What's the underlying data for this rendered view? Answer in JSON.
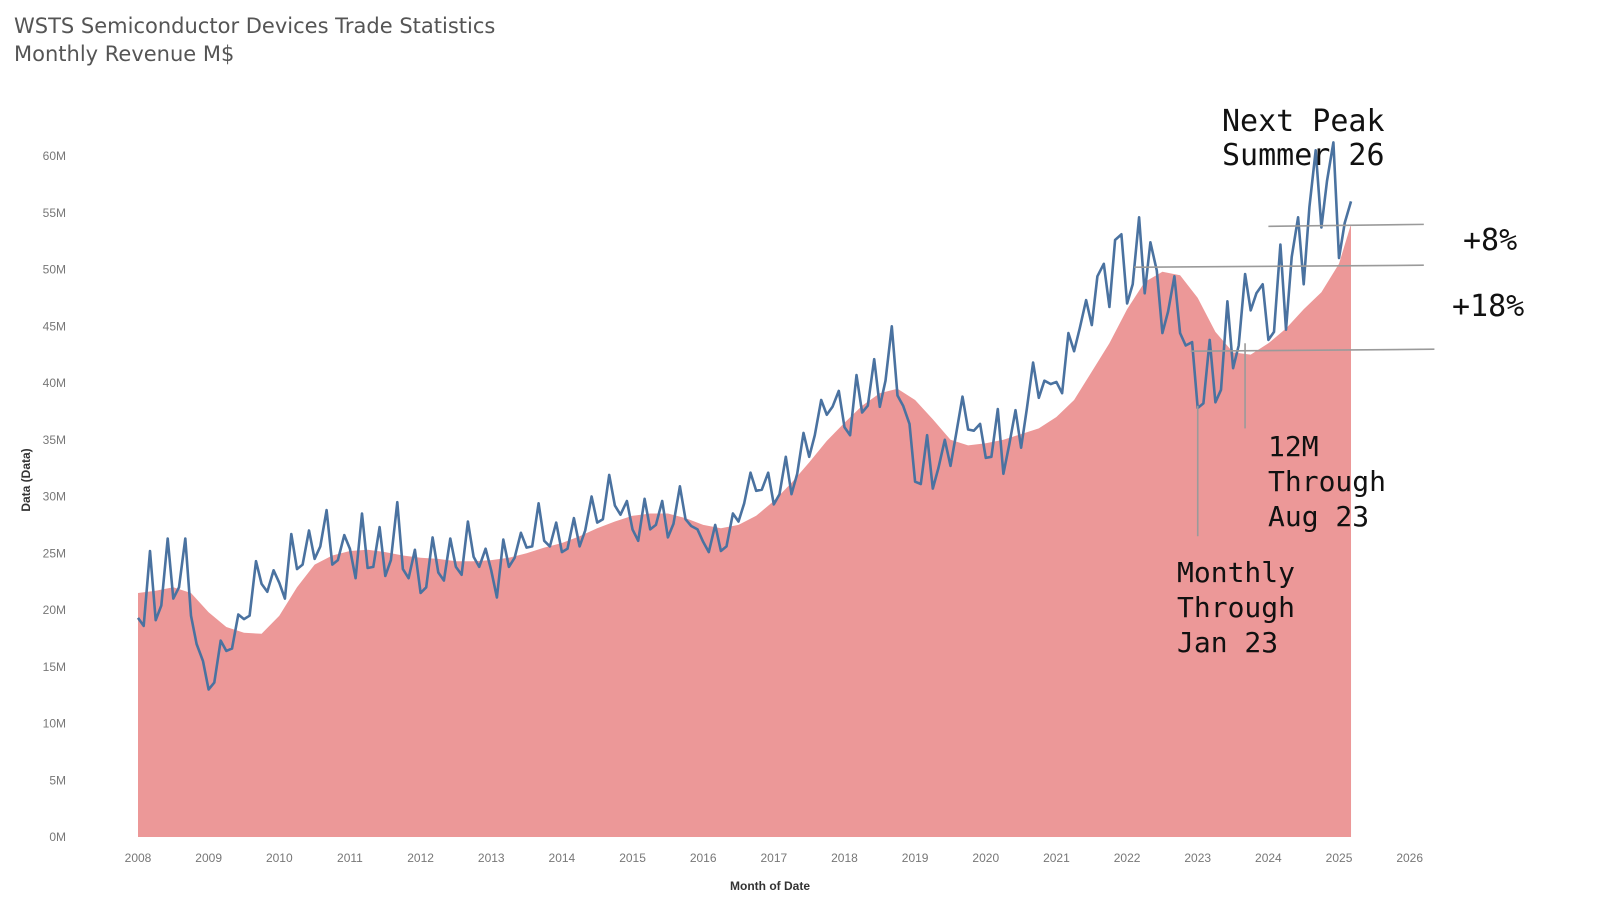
{
  "title_line1": "WSTS Semiconductor Devices Trade Statistics",
  "title_line2": "Monthly Revenue M$",
  "colors": {
    "monthly_line": "#4a72a0",
    "avg_area": "#ec9898",
    "annotation_line": "#9a9a9a"
  },
  "chart_data": {
    "type": "area",
    "xlabel": "Month of Date",
    "ylabel": "Data (Data)",
    "xlim": [
      2008,
      2026.5
    ],
    "ylim": [
      0,
      60
    ],
    "x_ticks": [
      "2008",
      "2009",
      "2010",
      "2011",
      "2012",
      "2013",
      "2014",
      "2015",
      "2016",
      "2017",
      "2018",
      "2019",
      "2020",
      "2021",
      "2022",
      "2023",
      "2024",
      "2025",
      "2026"
    ],
    "y_ticks": [
      "0M",
      "5M",
      "10M",
      "15M",
      "20M",
      "25M",
      "30M",
      "35M",
      "40M",
      "45M",
      "50M",
      "55M",
      "60M"
    ],
    "y_tick_values": [
      0,
      5,
      10,
      15,
      20,
      25,
      30,
      35,
      40,
      45,
      50,
      55,
      60
    ],
    "series": [
      {
        "name": "Monthly",
        "style": "line",
        "x": [
          2008.0,
          2008.08,
          2008.17,
          2008.25,
          2008.33,
          2008.42,
          2008.5,
          2008.58,
          2008.67,
          2008.75,
          2008.83,
          2008.92,
          2009.0,
          2009.08,
          2009.17,
          2009.25,
          2009.33,
          2009.42,
          2009.5,
          2009.58,
          2009.67,
          2009.75,
          2009.83,
          2009.92,
          2010.0,
          2010.08,
          2010.17,
          2010.25,
          2010.33,
          2010.42,
          2010.5,
          2010.58,
          2010.67,
          2010.75,
          2010.83,
          2010.92,
          2011.0,
          2011.08,
          2011.17,
          2011.25,
          2011.33,
          2011.42,
          2011.5,
          2011.58,
          2011.67,
          2011.75,
          2011.83,
          2011.92,
          2012.0,
          2012.08,
          2012.17,
          2012.25,
          2012.33,
          2012.42,
          2012.5,
          2012.58,
          2012.67,
          2012.75,
          2012.83,
          2012.92,
          2013.0,
          2013.08,
          2013.17,
          2013.25,
          2013.33,
          2013.42,
          2013.5,
          2013.58,
          2013.67,
          2013.75,
          2013.83,
          2013.92,
          2014.0,
          2014.08,
          2014.17,
          2014.25,
          2014.33,
          2014.42,
          2014.5,
          2014.58,
          2014.67,
          2014.75,
          2014.83,
          2014.92,
          2015.0,
          2015.08,
          2015.17,
          2015.25,
          2015.33,
          2015.42,
          2015.5,
          2015.58,
          2015.67,
          2015.75,
          2015.83,
          2015.92,
          2016.0,
          2016.08,
          2016.17,
          2016.25,
          2016.33,
          2016.42,
          2016.5,
          2016.58,
          2016.67,
          2016.75,
          2016.83,
          2016.92,
          2017.0,
          2017.08,
          2017.17,
          2017.25,
          2017.33,
          2017.42,
          2017.5,
          2017.58,
          2017.67,
          2017.75,
          2017.83,
          2017.92,
          2018.0,
          2018.08,
          2018.17,
          2018.25,
          2018.33,
          2018.42,
          2018.5,
          2018.58,
          2018.67,
          2018.75,
          2018.83,
          2018.92,
          2019.0,
          2019.08,
          2019.17,
          2019.25,
          2019.33,
          2019.42,
          2019.5,
          2019.58,
          2019.67,
          2019.75,
          2019.83,
          2019.92,
          2020.0,
          2020.08,
          2020.17,
          2020.25,
          2020.33,
          2020.42,
          2020.5,
          2020.58,
          2020.67,
          2020.75,
          2020.83,
          2020.92,
          2021.0,
          2021.08,
          2021.17,
          2021.25,
          2021.33,
          2021.42,
          2021.5,
          2021.58,
          2021.67,
          2021.75,
          2021.83,
          2021.92,
          2022.0,
          2022.08,
          2022.17,
          2022.25,
          2022.33,
          2022.42,
          2022.5,
          2022.58,
          2022.67,
          2022.75,
          2022.83,
          2022.92,
          2023.0,
          2023.08,
          2023.17,
          2023.25,
          2023.33,
          2023.42,
          2023.5,
          2023.58,
          2023.67,
          2023.75,
          2023.83,
          2023.92,
          2024.0,
          2024.08,
          2024.17,
          2024.25,
          2024.33,
          2024.42,
          2024.5,
          2024.58,
          2024.67,
          2024.75,
          2024.83,
          2024.92,
          2025.0,
          2025.08,
          2025.17
        ],
        "values": [
          19.3,
          18.6,
          25.2,
          19.1,
          20.4,
          26.3,
          21.0,
          22.0,
          26.3,
          19.5,
          17.0,
          15.5,
          13.0,
          13.6,
          17.3,
          16.4,
          16.6,
          19.6,
          19.2,
          19.5,
          24.3,
          22.3,
          21.6,
          23.5,
          22.4,
          21.0,
          26.7,
          23.6,
          24.0,
          27.0,
          24.5,
          25.6,
          28.8,
          24.0,
          24.4,
          26.6,
          25.4,
          22.8,
          28.5,
          23.7,
          23.8,
          27.3,
          23.0,
          24.4,
          29.5,
          23.6,
          22.8,
          25.3,
          21.5,
          22.0,
          26.4,
          23.3,
          22.6,
          26.3,
          23.8,
          23.1,
          27.8,
          24.7,
          23.8,
          25.4,
          23.5,
          21.1,
          26.2,
          23.8,
          24.6,
          26.8,
          25.5,
          25.6,
          29.4,
          26.1,
          25.6,
          27.7,
          25.1,
          25.4,
          28.1,
          25.6,
          27.0,
          30.0,
          27.7,
          28.0,
          31.9,
          29.2,
          28.4,
          29.6,
          27.1,
          26.1,
          29.8,
          27.1,
          27.5,
          29.6,
          26.4,
          27.6,
          30.9,
          28.0,
          27.4,
          27.1,
          26.0,
          25.1,
          27.5,
          25.2,
          25.6,
          28.5,
          27.8,
          29.4,
          32.1,
          30.5,
          30.6,
          32.1,
          29.3,
          30.2,
          33.5,
          30.2,
          32.0,
          35.6,
          33.5,
          35.4,
          38.5,
          37.2,
          37.9,
          39.3,
          36.1,
          35.4,
          40.7,
          37.4,
          38.0,
          42.1,
          37.9,
          40.2,
          45.0,
          38.9,
          38.0,
          36.4,
          31.3,
          31.1,
          35.4,
          30.7,
          32.5,
          35.0,
          32.7,
          35.5,
          38.8,
          35.9,
          35.8,
          36.4,
          33.4,
          33.5,
          37.7,
          32.0,
          34.5,
          37.6,
          34.3,
          37.7,
          41.8,
          38.7,
          40.2,
          39.9,
          40.1,
          39.1,
          44.4,
          42.8,
          44.8,
          47.3,
          45.1,
          49.4,
          50.5,
          46.7,
          52.6,
          53.1,
          47.0,
          48.7,
          54.6,
          47.9,
          52.4,
          49.9,
          44.4,
          46.3,
          49.4,
          44.4,
          43.3,
          43.6,
          37.8,
          38.2,
          43.8,
          38.3,
          39.4,
          47.2,
          41.3,
          43.3,
          49.6,
          46.4,
          47.9,
          48.7,
          43.8,
          44.5,
          52.2,
          44.7,
          51.1,
          54.6,
          48.7,
          55.5,
          60.5,
          53.7,
          57.8,
          61.2,
          51.0,
          54.1,
          56.0
        ]
      },
      {
        "name": "12M",
        "style": "area",
        "x": [
          2008.0,
          2008.25,
          2008.5,
          2008.75,
          2009.0,
          2009.25,
          2009.5,
          2009.75,
          2010.0,
          2010.25,
          2010.5,
          2010.75,
          2011.0,
          2011.25,
          2011.5,
          2011.75,
          2012.0,
          2012.25,
          2012.5,
          2012.75,
          2013.0,
          2013.25,
          2013.5,
          2013.75,
          2014.0,
          2014.25,
          2014.5,
          2014.75,
          2015.0,
          2015.25,
          2015.5,
          2015.75,
          2016.0,
          2016.25,
          2016.5,
          2016.75,
          2017.0,
          2017.25,
          2017.5,
          2017.75,
          2018.0,
          2018.25,
          2018.5,
          2018.75,
          2019.0,
          2019.25,
          2019.5,
          2019.75,
          2020.0,
          2020.25,
          2020.5,
          2020.75,
          2021.0,
          2021.25,
          2021.5,
          2021.75,
          2022.0,
          2022.25,
          2022.5,
          2022.75,
          2023.0,
          2023.25,
          2023.5,
          2023.75,
          2024.0,
          2024.25,
          2024.5,
          2024.75,
          2025.0,
          2025.17
        ],
        "values": [
          21.5,
          21.7,
          22.0,
          21.5,
          19.8,
          18.5,
          18.0,
          17.9,
          19.5,
          22.0,
          24.0,
          24.8,
          25.2,
          25.3,
          25.1,
          24.8,
          24.6,
          24.5,
          24.3,
          24.3,
          24.4,
          24.6,
          25.0,
          25.5,
          25.9,
          26.5,
          27.2,
          27.8,
          28.3,
          28.5,
          28.5,
          28.1,
          27.5,
          27.2,
          27.5,
          28.3,
          29.6,
          31.2,
          33.0,
          34.9,
          36.5,
          38.0,
          39.1,
          39.5,
          38.5,
          36.8,
          35.0,
          34.5,
          34.7,
          35.0,
          35.5,
          36.0,
          37.0,
          38.5,
          41.0,
          43.5,
          46.5,
          48.9,
          49.8,
          49.5,
          47.5,
          44.5,
          42.7,
          42.5,
          43.5,
          44.8,
          46.5,
          48.0,
          50.5,
          54.0
        ]
      }
    ],
    "annotations": [
      {
        "id": "next-peak",
        "lines": [
          "Next Peak",
          "Summer 26"
        ]
      },
      {
        "id": "plus-8",
        "lines": [
          "+8%"
        ]
      },
      {
        "id": "plus-18",
        "lines": [
          "+18%"
        ]
      },
      {
        "id": "12m-through",
        "lines": [
          "12M",
          "Through",
          "Aug 23"
        ]
      },
      {
        "id": "monthly-through",
        "lines": [
          "Monthly",
          "Through",
          "Jan 23"
        ]
      }
    ],
    "reference_levels": [
      {
        "id": "level-current",
        "y": 53.8,
        "x_start": 2024.0,
        "x_end": 2026.2
      },
      {
        "id": "level-prior-peak",
        "y": 50.2,
        "x_start": 2022.1,
        "x_end": 2026.2
      },
      {
        "id": "level-trough",
        "y": 42.8,
        "x_start": 2022.9,
        "x_end": 2026.35
      }
    ],
    "reference_markers": [
      {
        "id": "marker-jan23",
        "x": 2023.0,
        "y_start": 38.0,
        "y_end": 26.5
      },
      {
        "id": "marker-aug23",
        "x": 2023.67,
        "y_start": 43.5,
        "y_end": 36.0
      }
    ]
  }
}
